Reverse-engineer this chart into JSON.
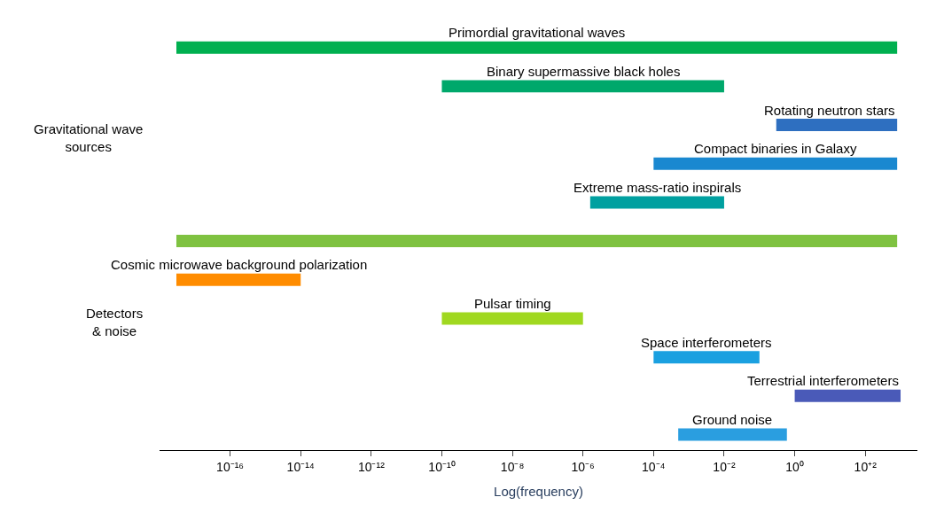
{
  "chart_data": {
    "type": "bar",
    "orientation": "horizontal",
    "tick_labels": "x",
    "log": "x",
    "categories": [
      "Primordial gravitational waves",
      "Binary supermassive black holes",
      "Rotating neutron stars",
      "Compact binaries in Galaxy",
      "Extreme mass-ratio inspirals",
      null,
      "Cosmic microwave background polarization",
      "Pulsar timing",
      "Space interferometers",
      "Terrestrial interferometers",
      "Ground noise"
    ],
    "base": [
      3e-18,
      1e-10,
      0.3,
      0.0001,
      1.6e-06,
      3e-18,
      3e-18,
      1e-10,
      0.0001,
      1,
      0.0005
    ],
    "values": [
      800,
      0.01,
      800,
      800,
      0.01,
      800,
      1e-14,
      1e-06,
      0.1,
      1000,
      0.6
    ],
    "colors": [
      "#00b050",
      "#00a86b",
      "#2e6fc0",
      "#1a88d0",
      "#00a0a0",
      "#7fc241",
      "#ff8c00",
      "#a0d820",
      "#1aa0e0",
      "#4a5ab8",
      "#2a9ee0"
    ],
    "xlabel": "Log(frequency)",
    "xlim": [
      1e-18,
      3000
    ],
    "xticks": [
      {
        "value": 1e-16,
        "label": "10⁻¹⁶"
      },
      {
        "value": 1e-14,
        "label": "10⁻¹⁴"
      },
      {
        "value": 1e-12,
        "label": "10⁻¹²"
      },
      {
        "value": 1e-10,
        "label": "10⁻¹⁰"
      },
      {
        "value": 1e-08,
        "label": "10⁻⁸"
      },
      {
        "value": 1e-06,
        "label": "10⁻⁶"
      },
      {
        "value": 0.0001,
        "label": "10⁻⁴"
      },
      {
        "value": 0.01,
        "label": "10⁻²"
      },
      {
        "value": 1,
        "label": "10⁰"
      },
      {
        "value": 100,
        "label": "10⁺²"
      }
    ],
    "annotations": [
      "Gravitational wave sources",
      "Detectors & noise"
    ]
  }
}
